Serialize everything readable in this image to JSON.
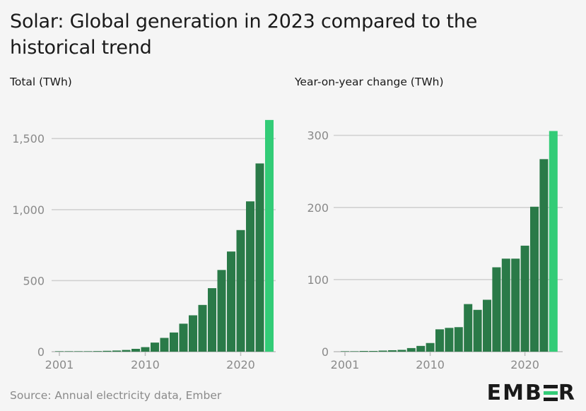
{
  "title": "Solar: Global generation in 2023 compared to the historical trend",
  "source": "Source: Annual electricity data, Ember",
  "logo": {
    "text_left": "EMB",
    "text_right": "R",
    "alt": "EMBER"
  },
  "colors": {
    "bar": "#2a7a48",
    "highlight": "#33cc77",
    "grid": "#cfcfcf",
    "axis": "#bdbdbd",
    "tick_text": "#8a8a8a",
    "background": "#f5f5f5"
  },
  "chart_data": [
    {
      "type": "bar",
      "title": "Total (TWh)",
      "x": [
        2001,
        2002,
        2003,
        2004,
        2005,
        2006,
        2007,
        2008,
        2009,
        2010,
        2011,
        2012,
        2013,
        2014,
        2015,
        2016,
        2017,
        2018,
        2019,
        2020,
        2021,
        2022,
        2023
      ],
      "values": [
        1,
        2,
        2,
        3,
        4,
        6,
        8,
        12,
        20,
        32,
        64,
        97,
        135,
        197,
        256,
        329,
        447,
        575,
        705,
        856,
        1058,
        1325,
        1631
      ],
      "highlight_index": 22,
      "ylim": [
        0,
        1700
      ],
      "yticks": [
        0,
        500,
        1000,
        1500
      ],
      "ytick_labels": [
        "0",
        "500",
        "1,000",
        "1,500"
      ],
      "xticks": [
        2001,
        2010,
        2020
      ],
      "xtick_labels": [
        "2001",
        "2010",
        "2020"
      ],
      "grid": true
    },
    {
      "type": "bar",
      "title": "Year-on-year change (TWh)",
      "x": [
        2001,
        2002,
        2003,
        2004,
        2005,
        2006,
        2007,
        2008,
        2009,
        2010,
        2011,
        2012,
        2013,
        2014,
        2015,
        2016,
        2017,
        2018,
        2019,
        2020,
        2021,
        2022,
        2023
      ],
      "values": [
        0.3,
        0.5,
        1,
        1,
        1.5,
        2,
        2.5,
        5,
        8,
        12,
        31,
        33,
        34,
        66,
        58,
        72,
        117,
        129,
        129,
        147,
        201,
        267,
        306
      ],
      "highlight_index": 22,
      "ylim": [
        0,
        330
      ],
      "yticks": [
        0,
        100,
        200,
        300
      ],
      "ytick_labels": [
        "0",
        "100",
        "200",
        "300"
      ],
      "xticks": [
        2001,
        2010,
        2020
      ],
      "xtick_labels": [
        "2001",
        "2010",
        "2020"
      ],
      "grid": true
    }
  ]
}
